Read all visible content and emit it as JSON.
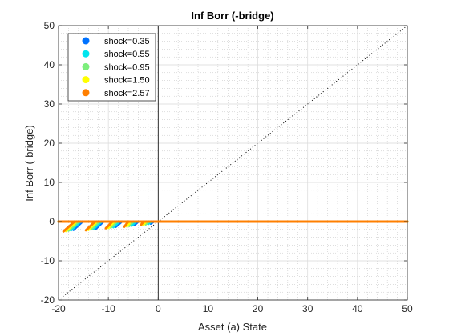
{
  "chart_data": {
    "type": "scatter",
    "title": "Inf Borr (-bridge)",
    "xlabel": "Asset (a) State",
    "ylabel": "Inf Borr (-bridge)",
    "xlim": [
      -20,
      50
    ],
    "ylim": [
      -20,
      50
    ],
    "xticks": [
      -20,
      -10,
      0,
      10,
      20,
      30,
      40,
      50
    ],
    "yticks": [
      -20,
      -10,
      0,
      10,
      20,
      30,
      40,
      50
    ],
    "grid": true,
    "minor_grid": true,
    "reference_lines": [
      "45-degree line (dotted)",
      "vertical line at x = 0"
    ],
    "legend_position": "top-left",
    "series": [
      {
        "name": "shock=0.35",
        "color": "#0072ff",
        "segments": [
          [
            [
              -20,
              0
            ],
            [
              50,
              0
            ]
          ],
          [
            [
              -17,
              -2.1
            ],
            [
              -15.2,
              0
            ]
          ],
          [
            [
              -12.5,
              -1.8
            ],
            [
              -11,
              0
            ]
          ],
          [
            [
              -8.5,
              -1.3
            ],
            [
              -7.3,
              0
            ]
          ],
          [
            [
              -4.8,
              -0.9
            ],
            [
              -4,
              0
            ]
          ],
          [
            [
              -1.5,
              -0.5
            ],
            [
              -0.9,
              0
            ]
          ]
        ]
      },
      {
        "name": "shock=0.55",
        "color": "#00e5ee",
        "segments": [
          [
            [
              -20,
              0
            ],
            [
              50,
              0
            ]
          ],
          [
            [
              -17.5,
              -2.2
            ],
            [
              -15.6,
              0
            ]
          ],
          [
            [
              -13,
              -1.9
            ],
            [
              -11.4,
              0
            ]
          ],
          [
            [
              -9,
              -1.4
            ],
            [
              -7.8,
              0
            ]
          ],
          [
            [
              -5.3,
              -1
            ],
            [
              -4.5,
              0
            ]
          ],
          [
            [
              -2,
              -0.6
            ],
            [
              -1.4,
              0
            ]
          ]
        ]
      },
      {
        "name": "shock=0.95",
        "color": "#7dee7d",
        "segments": [
          [
            [
              -20,
              0
            ],
            [
              50,
              0
            ]
          ],
          [
            [
              -18,
              -2.3
            ],
            [
              -16,
              0
            ]
          ],
          [
            [
              -13.5,
              -2
            ],
            [
              -11.9,
              0
            ]
          ],
          [
            [
              -9.5,
              -1.5
            ],
            [
              -8.3,
              0
            ]
          ],
          [
            [
              -5.8,
              -1.1
            ],
            [
              -5,
              0
            ]
          ],
          [
            [
              -2.5,
              -0.7
            ],
            [
              -1.9,
              0
            ]
          ]
        ]
      },
      {
        "name": "shock=1.50",
        "color": "#ffff00",
        "segments": [
          [
            [
              -20,
              0
            ],
            [
              50,
              0
            ]
          ],
          [
            [
              -18.5,
              -2.4
            ],
            [
              -16.4,
              0
            ]
          ],
          [
            [
              -14,
              -2.1
            ],
            [
              -12.3,
              0
            ]
          ],
          [
            [
              -10,
              -1.6
            ],
            [
              -8.8,
              0
            ]
          ],
          [
            [
              -6.3,
              -1.2
            ],
            [
              -5.5,
              0
            ]
          ],
          [
            [
              -3,
              -0.8
            ],
            [
              -2.4,
              0
            ]
          ]
        ]
      },
      {
        "name": "shock=2.57",
        "color": "#ff7f00",
        "segments": [
          [
            [
              -20,
              0
            ],
            [
              50,
              0
            ]
          ],
          [
            [
              -19,
              -2.5
            ],
            [
              -16.8,
              0
            ]
          ],
          [
            [
              -14.5,
              -2.2
            ],
            [
              -12.7,
              0
            ]
          ],
          [
            [
              -10.5,
              -1.7
            ],
            [
              -9.2,
              0
            ]
          ],
          [
            [
              -6.8,
              -1.3
            ],
            [
              -6,
              0
            ]
          ],
          [
            [
              -3.5,
              -0.9
            ],
            [
              -2.9,
              0
            ]
          ]
        ]
      }
    ]
  }
}
